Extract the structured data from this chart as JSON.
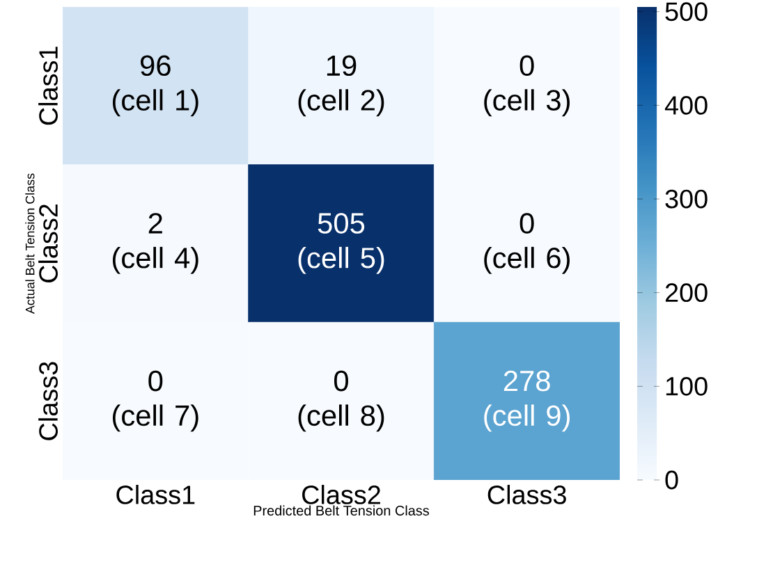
{
  "chart_data": {
    "type": "heatmap",
    "xlabel": "Predicted Belt Tension Class",
    "ylabel": "Actual Belt Tension Class",
    "categories": [
      "Class1",
      "Class2",
      "Class3"
    ],
    "y_categories": [
      "Class1",
      "Class2",
      "Class3"
    ],
    "cells": [
      [
        96,
        19,
        0
      ],
      [
        2,
        505,
        0
      ],
      [
        0,
        0,
        278
      ]
    ],
    "cell_labels": [
      [
        "96\n(cell 1)",
        "19\n(cell 2)",
        "0\n(cell 3)"
      ],
      [
        "2\n(cell 4)",
        "505\n(cell 5)",
        "0\n(cell 6)"
      ],
      [
        "0\n(cell 7)",
        "0\n(cell 8)",
        "278\n(cell 9)"
      ]
    ],
    "clim": [
      0,
      505
    ],
    "cticks": [
      0,
      100,
      200,
      300,
      400,
      500
    ]
  }
}
